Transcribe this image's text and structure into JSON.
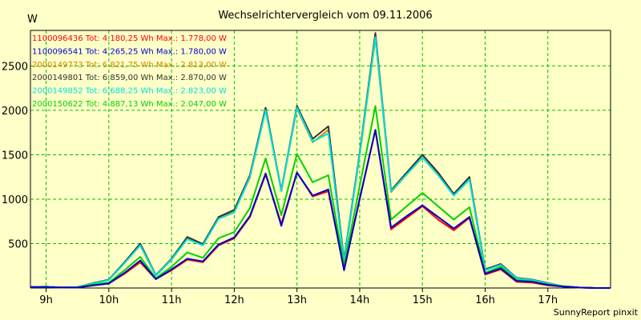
{
  "chart_data": {
    "type": "line",
    "title": "Wechselrichtervergleich vom 09.11.2006",
    "ylabel": "W",
    "footer": "SunnyReport pinxit",
    "xlim": [
      8.75,
      18.0
    ],
    "ylim": [
      0,
      2900
    ],
    "x_ticks": [
      9,
      10,
      11,
      12,
      13,
      14,
      15,
      16,
      17
    ],
    "x_tick_labels": [
      "9h",
      "10h",
      "11h",
      "12h",
      "13h",
      "14h",
      "15h",
      "16h",
      "17h"
    ],
    "y_ticks": [
      500,
      1000,
      1500,
      2000,
      2500
    ],
    "y_tick_labels": [
      "500",
      "1000",
      "1500",
      "2000",
      "2500"
    ],
    "grid": true,
    "legend_position": "top-left",
    "colors": {
      "background": "#ffffc8",
      "grid": "#00c000",
      "axis": "#000000"
    },
    "x": [
      8.75,
      9.0,
      9.25,
      9.5,
      9.75,
      10.0,
      10.25,
      10.5,
      10.75,
      11.0,
      11.25,
      11.5,
      11.75,
      12.0,
      12.25,
      12.5,
      12.75,
      13.0,
      13.25,
      13.5,
      13.75,
      14.0,
      14.25,
      14.5,
      14.75,
      15.0,
      15.25,
      15.5,
      15.75,
      16.0,
      16.25,
      16.5,
      16.75,
      17.0,
      17.25,
      17.5,
      17.75,
      18.0
    ],
    "series": [
      {
        "name": "1100096436 Tot: 4.180,25 Wh Max.: 1.778,00 W",
        "color": "#ff0000",
        "values": [
          10,
          10,
          5,
          5,
          30,
          50,
          160,
          290,
          100,
          200,
          320,
          290,
          480,
          560,
          800,
          1280,
          720,
          1300,
          1030,
          1090,
          210,
          1010,
          1778,
          660,
          790,
          920,
          770,
          650,
          790,
          150,
          210,
          70,
          60,
          30,
          15,
          5,
          0,
          0
        ]
      },
      {
        "name": "1100096541 Tot: 4.265,25 Wh Max.: 1.780,00 W",
        "color": "#0000cc",
        "values": [
          10,
          10,
          5,
          5,
          30,
          50,
          170,
          310,
          100,
          210,
          330,
          300,
          490,
          570,
          810,
          1290,
          700,
          1300,
          1040,
          1110,
          200,
          1000,
          1780,
          680,
          810,
          930,
          800,
          670,
          800,
          160,
          220,
          80,
          70,
          35,
          15,
          5,
          0,
          0
        ]
      },
      {
        "name": "2000149773 Tot: 6.821,75 Wh Max.: 2.813,00 W",
        "color": "#d88000",
        "values": [
          10,
          15,
          5,
          10,
          50,
          90,
          280,
          480,
          140,
          320,
          560,
          480,
          790,
          860,
          1240,
          2010,
          1090,
          2020,
          1640,
          1780,
          300,
          1490,
          2813,
          1080,
          1280,
          1470,
          1280,
          1050,
          1220,
          200,
          260,
          110,
          90,
          50,
          20,
          5,
          0,
          0
        ]
      },
      {
        "name": "2000149801 Tot: 6.859,00 Wh Max.: 2.870,00 W",
        "color": "#333333",
        "values": [
          10,
          15,
          5,
          10,
          55,
          95,
          290,
          500,
          145,
          330,
          575,
          495,
          800,
          880,
          1270,
          2030,
          1100,
          2050,
          1680,
          1820,
          320,
          1520,
          2870,
          1100,
          1300,
          1500,
          1300,
          1060,
          1250,
          210,
          270,
          115,
          95,
          55,
          20,
          5,
          0,
          0
        ]
      },
      {
        "name": "2000149852 Tot: 6.688,25 Wh Max.: 2.823,00 W",
        "color": "#00e0e0",
        "values": [
          10,
          15,
          5,
          10,
          50,
          90,
          280,
          480,
          140,
          320,
          550,
          480,
          780,
          850,
          1250,
          2000,
          1090,
          2030,
          1650,
          1740,
          300,
          1500,
          2823,
          1090,
          1280,
          1470,
          1270,
          1040,
          1220,
          200,
          260,
          110,
          90,
          50,
          20,
          5,
          0,
          0
        ]
      },
      {
        "name": "2000150622 Tot: 4.887,13 Wh Max.: 2.047,00 W",
        "color": "#00d000",
        "values": [
          10,
          10,
          5,
          5,
          40,
          60,
          200,
          350,
          110,
          240,
          400,
          340,
          560,
          630,
          900,
          1460,
          820,
          1510,
          1190,
          1270,
          250,
          1150,
          2047,
          770,
          920,
          1070,
          920,
          770,
          910,
          170,
          240,
          90,
          75,
          40,
          15,
          5,
          0,
          0
        ]
      }
    ]
  }
}
